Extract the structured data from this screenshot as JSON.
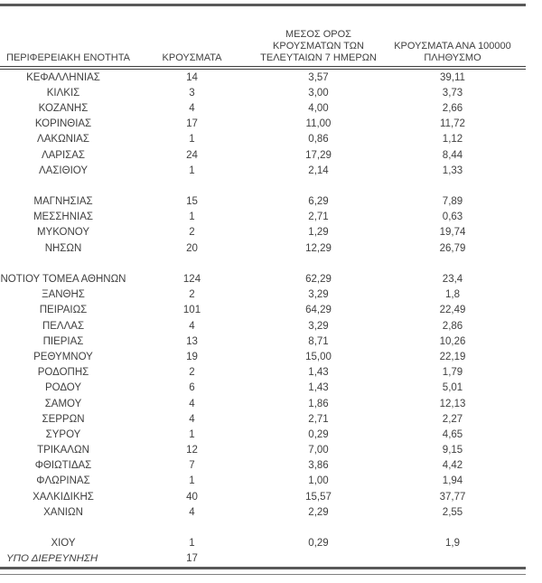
{
  "colors": {
    "text": "#404040",
    "heavy_line": "#595959",
    "thin_line": "#7f7f7f",
    "background": "#ffffff"
  },
  "table": {
    "columns": [
      {
        "id": "region",
        "label": "ΠΕΡΙΦΕΡΕΙΑΚΗ ΕΝΟΤΗΤΑ"
      },
      {
        "id": "cases",
        "label": "ΚΡΟΥΣΜΑΤΑ"
      },
      {
        "id": "avg7",
        "label": "ΜΕΣΟΣ ΟΡΟΣ\nΚΡΟΥΣΜΑΤΩΝ ΤΩΝ\nΤΕΛΕΥΤΑΙΩΝ 7 ΗΜΕΡΩΝ"
      },
      {
        "id": "per100k",
        "label": "ΚΡΟΥΣΜΑΤΑ ΑΝΑ 100000\nΠΛΗΘΥΣΜΟ"
      }
    ],
    "rows": [
      {
        "name": "ΚΕΦΑΛΛΗΝΙΑΣ",
        "cases": "14",
        "avg7": "3,57",
        "per100k": "39,11"
      },
      {
        "name": "ΚΙΛΚΙΣ",
        "cases": "3",
        "avg7": "3,00",
        "per100k": "3,73"
      },
      {
        "name": "ΚΟΖΑΝΗΣ",
        "cases": "4",
        "avg7": "4,00",
        "per100k": "2,66"
      },
      {
        "name": "ΚΟΡΙΝΘΙΑΣ",
        "cases": "17",
        "avg7": "11,00",
        "per100k": "11,72"
      },
      {
        "name": "ΛΑΚΩΝΙΑΣ",
        "cases": "1",
        "avg7": "0,86",
        "per100k": "1,12"
      },
      {
        "name": "ΛΑΡΙΣΑΣ",
        "cases": "24",
        "avg7": "17,29",
        "per100k": "8,44"
      },
      {
        "name": "ΛΑΣΙΘΙΟΥ",
        "cases": "1",
        "avg7": "2,14",
        "per100k": "1,33"
      },
      {
        "name": "",
        "cases": "",
        "avg7": "",
        "per100k": "",
        "blank": true
      },
      {
        "name": "ΜΑΓΝΗΣΙΑΣ",
        "cases": "15",
        "avg7": "6,29",
        "per100k": "7,89"
      },
      {
        "name": "ΜΕΣΣΗΝΙΑΣ",
        "cases": "1",
        "avg7": "2,71",
        "per100k": "0,63"
      },
      {
        "name": "ΜΥΚΟΝΟΥ",
        "cases": "2",
        "avg7": "1,29",
        "per100k": "19,74"
      },
      {
        "name": "ΝΗΣΩΝ",
        "cases": "20",
        "avg7": "12,29",
        "per100k": "26,79"
      },
      {
        "name": "",
        "cases": "",
        "avg7": "",
        "per100k": "",
        "blank": true
      },
      {
        "name": "ΝΟΤΙΟΥ ΤΟΜΕΑ ΑΘΗΝΩΝ",
        "cases": "124",
        "avg7": "62,29",
        "per100k": "23,4"
      },
      {
        "name": "ΞΑΝΘΗΣ",
        "cases": "2",
        "avg7": "3,29",
        "per100k": "1,8"
      },
      {
        "name": "ΠΕΙΡΑΙΩΣ",
        "cases": "101",
        "avg7": "64,29",
        "per100k": "22,49"
      },
      {
        "name": "ΠΕΛΛΑΣ",
        "cases": "4",
        "avg7": "3,29",
        "per100k": "2,86"
      },
      {
        "name": "ΠΙΕΡΙΑΣ",
        "cases": "13",
        "avg7": "8,71",
        "per100k": "10,26"
      },
      {
        "name": "ΡΕΘΥΜΝΟΥ",
        "cases": "19",
        "avg7": "15,00",
        "per100k": "22,19"
      },
      {
        "name": "ΡΟΔΟΠΗΣ",
        "cases": "2",
        "avg7": "1,43",
        "per100k": "1,79"
      },
      {
        "name": "ΡΟΔΟΥ",
        "cases": "6",
        "avg7": "1,43",
        "per100k": "5,01"
      },
      {
        "name": "ΣΑΜΟΥ",
        "cases": "4",
        "avg7": "1,86",
        "per100k": "12,13"
      },
      {
        "name": "ΣΕΡΡΩΝ",
        "cases": "4",
        "avg7": "2,71",
        "per100k": "2,27"
      },
      {
        "name": "ΣΥΡΟΥ",
        "cases": "1",
        "avg7": "0,29",
        "per100k": "4,65"
      },
      {
        "name": "ΤΡΙΚΑΛΩΝ",
        "cases": "12",
        "avg7": "7,00",
        "per100k": "9,15"
      },
      {
        "name": "ΦΘΙΩΤΙΔΑΣ",
        "cases": "7",
        "avg7": "3,86",
        "per100k": "4,42"
      },
      {
        "name": "ΦΛΩΡΙΝΑΣ",
        "cases": "1",
        "avg7": "1,00",
        "per100k": "1,94"
      },
      {
        "name": "ΧΑΛΚΙΔΙΚΗΣ",
        "cases": "40",
        "avg7": "15,57",
        "per100k": "37,77"
      },
      {
        "name": "ΧΑΝΙΩΝ",
        "cases": "4",
        "avg7": "2,29",
        "per100k": "2,55"
      },
      {
        "name": "",
        "cases": "",
        "avg7": "",
        "per100k": "",
        "blank": true
      },
      {
        "name": "ΧΙΟΥ",
        "cases": "1",
        "avg7": "0,29",
        "per100k": "1,9"
      },
      {
        "name": "ΥΠΟ ΔΙΕΡΕΥΝΗΣΗ",
        "cases": "17",
        "avg7": "",
        "per100k": "",
        "style": "italic"
      }
    ]
  }
}
